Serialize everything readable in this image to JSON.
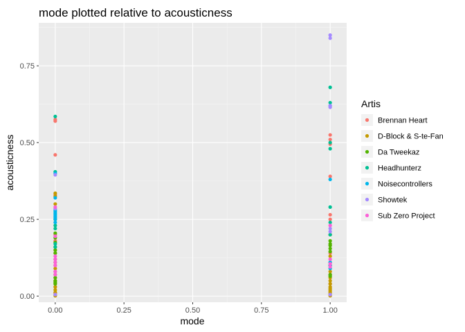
{
  "chart_data": {
    "type": "scatter",
    "title": "mode plotted relative to acousticness",
    "xlabel": "mode",
    "ylabel": "acousticness",
    "xlim": [
      -0.06,
      1.06
    ],
    "ylim": [
      -0.02,
      0.89
    ],
    "x_ticks": [
      0.0,
      0.25,
      0.5,
      0.75,
      1.0
    ],
    "x_tick_labels": [
      "0.00",
      "0.25",
      "0.50",
      "0.75",
      "1.00"
    ],
    "y_ticks": [
      0.0,
      0.25,
      0.5,
      0.75
    ],
    "y_tick_labels": [
      "0.00",
      "0.25",
      "0.50",
      "0.75"
    ],
    "grid": true,
    "legend": {
      "title": "Artis",
      "position": "right"
    },
    "series": [
      {
        "name": "Brennan Heart",
        "color": "#F8766D",
        "points": [
          [
            0,
            0.57
          ],
          [
            0,
            0.575
          ],
          [
            0,
            0.46
          ],
          [
            0,
            0.33
          ],
          [
            0,
            0.2
          ],
          [
            0,
            0.18
          ],
          [
            0,
            0.15
          ],
          [
            0,
            0.12
          ],
          [
            0,
            0.1
          ],
          [
            0,
            0.08
          ],
          [
            0,
            0.06
          ],
          [
            0,
            0.03
          ],
          [
            0,
            0.01
          ],
          [
            1,
            0.525
          ],
          [
            1,
            0.51
          ],
          [
            1,
            0.495
          ],
          [
            1,
            0.39
          ],
          [
            1,
            0.265
          ],
          [
            1,
            0.25
          ],
          [
            1,
            0.2
          ],
          [
            1,
            0.14
          ],
          [
            1,
            0.11
          ],
          [
            1,
            0.07
          ],
          [
            1,
            0.04
          ]
        ]
      },
      {
        "name": "D-Block & S-te-Fan",
        "color": "#C49A00",
        "points": [
          [
            0,
            0.335
          ],
          [
            0,
            0.325
          ],
          [
            0,
            0.3
          ],
          [
            0,
            0.25
          ],
          [
            0,
            0.14
          ],
          [
            0,
            0.11
          ],
          [
            0,
            0.09
          ],
          [
            0,
            0.07
          ],
          [
            0,
            0.05
          ],
          [
            0,
            0.04
          ],
          [
            0,
            0.03
          ],
          [
            0,
            0.02
          ],
          [
            0,
            0.012
          ],
          [
            0,
            0.006
          ],
          [
            0,
            0.001
          ],
          [
            1,
            0.2
          ],
          [
            1,
            0.13
          ],
          [
            1,
            0.1
          ],
          [
            1,
            0.08
          ],
          [
            1,
            0.06
          ],
          [
            1,
            0.05
          ],
          [
            1,
            0.04
          ],
          [
            1,
            0.03
          ],
          [
            1,
            0.025
          ],
          [
            1,
            0.02
          ],
          [
            1,
            0.015
          ],
          [
            1,
            0.01
          ],
          [
            1,
            0.005
          ],
          [
            1,
            0.001
          ]
        ]
      },
      {
        "name": "Da Tweekaz",
        "color": "#53B400",
        "points": [
          [
            0,
            0.205
          ],
          [
            0,
            0.19
          ],
          [
            0,
            0.175
          ],
          [
            0,
            0.16
          ],
          [
            0,
            0.15
          ],
          [
            0,
            0.14
          ],
          [
            0,
            0.06
          ],
          [
            0,
            0.05
          ],
          [
            0,
            0.045
          ],
          [
            0,
            0.04
          ],
          [
            1,
            0.18
          ],
          [
            1,
            0.17
          ],
          [
            1,
            0.165
          ],
          [
            1,
            0.155
          ],
          [
            1,
            0.145
          ],
          [
            1,
            0.07
          ],
          [
            1,
            0.065
          ]
        ]
      },
      {
        "name": "Headhunterz",
        "color": "#00C094",
        "points": [
          [
            0,
            0.585
          ],
          [
            0,
            0.405
          ],
          [
            0,
            0.23
          ],
          [
            0,
            0.22
          ],
          [
            0,
            0.17
          ],
          [
            0,
            0.16
          ],
          [
            1,
            0.68
          ],
          [
            1,
            0.63
          ],
          [
            1,
            0.5
          ],
          [
            1,
            0.48
          ],
          [
            1,
            0.29
          ],
          [
            1,
            0.24
          ],
          [
            1,
            0.2
          ]
        ]
      },
      {
        "name": "Noisecontrollers",
        "color": "#00B6EB",
        "points": [
          [
            0,
            0.4
          ],
          [
            0,
            0.32
          ],
          [
            0,
            0.28
          ],
          [
            0,
            0.275
          ],
          [
            0,
            0.27
          ],
          [
            0,
            0.265
          ],
          [
            0,
            0.26
          ],
          [
            0,
            0.255
          ],
          [
            0,
            0.25
          ],
          [
            0,
            0.24
          ],
          [
            1,
            0.62
          ],
          [
            1,
            0.38
          ],
          [
            1,
            0.11
          ],
          [
            1,
            0.1
          ],
          [
            1,
            0.09
          ]
        ]
      },
      {
        "name": "Showtek",
        "color": "#A58AFF",
        "points": [
          [
            0,
            0.395
          ],
          [
            0,
            0.285
          ],
          [
            0,
            0.005
          ],
          [
            1,
            0.85
          ],
          [
            1,
            0.84
          ],
          [
            1,
            0.62
          ],
          [
            1,
            0.615
          ],
          [
            1,
            0.22
          ],
          [
            1,
            0.21
          ],
          [
            1,
            0.005
          ]
        ]
      },
      {
        "name": "Sub Zero Project",
        "color": "#FB61D7",
        "points": [
          [
            0,
            0.29
          ],
          [
            0,
            0.195
          ],
          [
            0,
            0.13
          ],
          [
            0,
            0.12
          ],
          [
            0,
            0.11
          ],
          [
            0,
            0.1
          ],
          [
            0,
            0.08
          ],
          [
            0,
            0.07
          ],
          [
            1,
            0.23
          ],
          [
            1,
            0.12
          ],
          [
            1,
            0.105
          ],
          [
            1,
            0.095
          ]
        ]
      }
    ]
  }
}
